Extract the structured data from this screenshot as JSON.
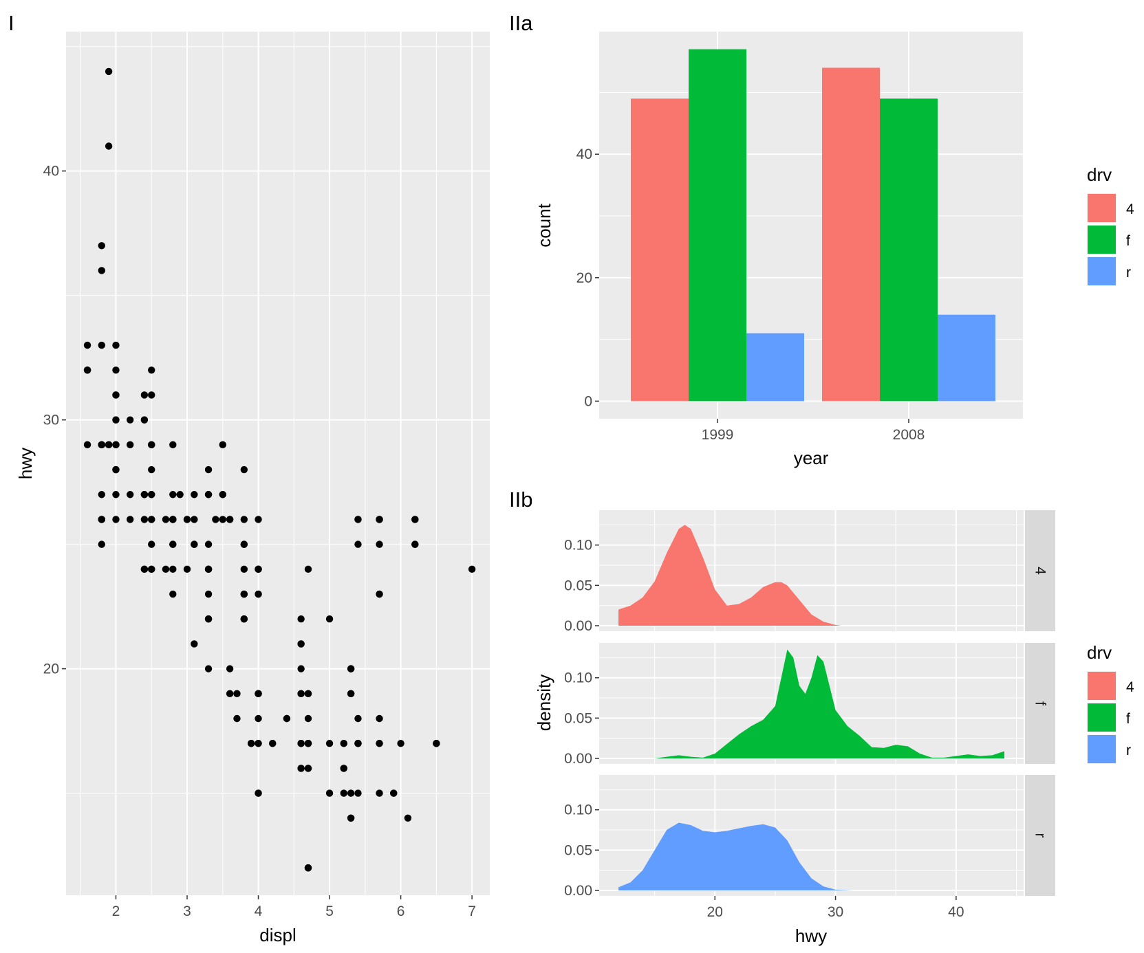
{
  "panels": {
    "a": {
      "tag": "I"
    },
    "b": {
      "tag": "IIa"
    },
    "c": {
      "tag": "IIb"
    }
  },
  "chart_data": [
    {
      "type": "scatter",
      "panel_tag": "I",
      "xlabel": "displ",
      "ylabel": "hwy",
      "xlim": [
        1.3,
        7.25
      ],
      "ylim": [
        10.9,
        45.6
      ],
      "xticks": [
        2,
        3,
        4,
        5,
        6,
        7
      ],
      "yticks": [
        20,
        30,
        40
      ],
      "points": [
        [
          1.8,
          29
        ],
        [
          1.8,
          29
        ],
        [
          2,
          31
        ],
        [
          2,
          30
        ],
        [
          2.8,
          26
        ],
        [
          2.8,
          26
        ],
        [
          3.1,
          27
        ],
        [
          1.8,
          26
        ],
        [
          1.8,
          25
        ],
        [
          2,
          28
        ],
        [
          2,
          27
        ],
        [
          2.8,
          25
        ],
        [
          2.8,
          25
        ],
        [
          3.1,
          25
        ],
        [
          3.1,
          25
        ],
        [
          5.7,
          26
        ],
        [
          5.7,
          23
        ],
        [
          6.2,
          26
        ],
        [
          6.2,
          25
        ],
        [
          6.5,
          17
        ],
        [
          5.3,
          20
        ],
        [
          5.3,
          15
        ],
        [
          5.3,
          20
        ],
        [
          5.7,
          17
        ],
        [
          6,
          17
        ],
        [
          5.7,
          26
        ],
        [
          5.7,
          23
        ],
        [
          6.2,
          26
        ],
        [
          6.2,
          25
        ],
        [
          7,
          24
        ],
        [
          5.3,
          19
        ],
        [
          5.3,
          14
        ],
        [
          5.7,
          15
        ],
        [
          6.5,
          17
        ],
        [
          2.4,
          27
        ],
        [
          2.4,
          30
        ],
        [
          3.1,
          26
        ],
        [
          3.5,
          29
        ],
        [
          3.6,
          26
        ],
        [
          2.4,
          24
        ],
        [
          3,
          24
        ],
        [
          3.3,
          22
        ],
        [
          3.3,
          22
        ],
        [
          3.3,
          24
        ],
        [
          3.3,
          24
        ],
        [
          3.3,
          24
        ],
        [
          3.8,
          22
        ],
        [
          3.8,
          22
        ],
        [
          3.8,
          24
        ],
        [
          4,
          24
        ],
        [
          3.7,
          19
        ],
        [
          3.7,
          18
        ],
        [
          3.9,
          17
        ],
        [
          3.9,
          17
        ],
        [
          4.7,
          19
        ],
        [
          4.7,
          19
        ],
        [
          4.7,
          12
        ],
        [
          5.2,
          17
        ],
        [
          5.2,
          17
        ],
        [
          3.9,
          17
        ],
        [
          4.7,
          17
        ],
        [
          4.7,
          12
        ],
        [
          4.7,
          17
        ],
        [
          5.2,
          16
        ],
        [
          5.7,
          18
        ],
        [
          5.9,
          15
        ],
        [
          4.7,
          16
        ],
        [
          4.7,
          12
        ],
        [
          4.7,
          17
        ],
        [
          4.7,
          17
        ],
        [
          4.7,
          16
        ],
        [
          4.7,
          12
        ],
        [
          5.2,
          15
        ],
        [
          5.2,
          16
        ],
        [
          5.7,
          17
        ],
        [
          5.9,
          15
        ],
        [
          4.6,
          17
        ],
        [
          5.4,
          17
        ],
        [
          5.4,
          18
        ],
        [
          4,
          17
        ],
        [
          4,
          19
        ],
        [
          4,
          17
        ],
        [
          4,
          19
        ],
        [
          4.6,
          19
        ],
        [
          5,
          17
        ],
        [
          4.2,
          17
        ],
        [
          4.2,
          17
        ],
        [
          4.6,
          16
        ],
        [
          4.6,
          17
        ],
        [
          4.6,
          17
        ],
        [
          5.4,
          15
        ],
        [
          5.4,
          17
        ],
        [
          5.4,
          26
        ],
        [
          5.4,
          25
        ],
        [
          4,
          26
        ],
        [
          4,
          24
        ],
        [
          4.6,
          21
        ],
        [
          5,
          22
        ],
        [
          3.8,
          23
        ],
        [
          3.8,
          23
        ],
        [
          4,
          23
        ],
        [
          4,
          19
        ],
        [
          4.6,
          21
        ],
        [
          4.6,
          19
        ],
        [
          4.6,
          20
        ],
        [
          4.6,
          22
        ],
        [
          5.4,
          17
        ],
        [
          5.4,
          17
        ],
        [
          1.8,
          29
        ],
        [
          1.8,
          29
        ],
        [
          2,
          28
        ],
        [
          2,
          29
        ],
        [
          2.8,
          26
        ],
        [
          2.8,
          26
        ],
        [
          3.6,
          26
        ],
        [
          2.4,
          26
        ],
        [
          2.4,
          27
        ],
        [
          3,
          26
        ],
        [
          3.3,
          25
        ],
        [
          3.3,
          23
        ],
        [
          3.5,
          27
        ],
        [
          3.8,
          25
        ],
        [
          4.4,
          18
        ],
        [
          4.4,
          18
        ],
        [
          2.5,
          24
        ],
        [
          2.5,
          25
        ],
        [
          2.8,
          24
        ],
        [
          4,
          18
        ],
        [
          4,
          15
        ],
        [
          4.6,
          16
        ],
        [
          5,
          15
        ],
        [
          6.1,
          14
        ],
        [
          5.3,
          19
        ],
        [
          5.3,
          20
        ],
        [
          4.7,
          17
        ],
        [
          5.3,
          14
        ],
        [
          4,
          15
        ],
        [
          4.7,
          18
        ],
        [
          2,
          30
        ],
        [
          2.5,
          29
        ],
        [
          1.6,
          32
        ],
        [
          1.6,
          32
        ],
        [
          1.6,
          29
        ],
        [
          1.6,
          32
        ],
        [
          1.6,
          33
        ],
        [
          1.8,
          33
        ],
        [
          1.8,
          36
        ],
        [
          1.8,
          37
        ],
        [
          1.9,
          44
        ],
        [
          1.9,
          41
        ],
        [
          2,
          31
        ],
        [
          2,
          29
        ],
        [
          2.5,
          28
        ],
        [
          2.8,
          26
        ],
        [
          3,
          26
        ],
        [
          1.8,
          27
        ],
        [
          1.8,
          29
        ],
        [
          2.5,
          31
        ],
        [
          2.7,
          26
        ],
        [
          3.4,
          26
        ],
        [
          4,
          24
        ],
        [
          4.7,
          24
        ],
        [
          2.2,
          26
        ],
        [
          2.2,
          27
        ],
        [
          2.4,
          31
        ],
        [
          2.4,
          30
        ],
        [
          3.3,
          22
        ],
        [
          3.3,
          20
        ],
        [
          2.4,
          24
        ],
        [
          2.5,
          26
        ],
        [
          2.5,
          27
        ],
        [
          2.8,
          23
        ],
        [
          3.8,
          23
        ],
        [
          3.8,
          22
        ],
        [
          3.8,
          26
        ],
        [
          4,
          23
        ],
        [
          5.4,
          26
        ],
        [
          5.7,
          25
        ],
        [
          5.7,
          26
        ],
        [
          6.5,
          17
        ],
        [
          3.3,
          28
        ],
        [
          3.8,
          28
        ],
        [
          3.8,
          25
        ],
        [
          3.3,
          27
        ],
        [
          3.5,
          26
        ],
        [
          2.5,
          26
        ],
        [
          2.7,
          24
        ],
        [
          3.1,
          21
        ],
        [
          3.6,
          20
        ],
        [
          3.6,
          19
        ],
        [
          2,
          33
        ],
        [
          2,
          32
        ],
        [
          2.5,
          29
        ],
        [
          2.5,
          27
        ],
        [
          3.3,
          27
        ],
        [
          3.5,
          27
        ],
        [
          1.9,
          29
        ],
        [
          1.9,
          29
        ],
        [
          2.5,
          32
        ],
        [
          2.9,
          27
        ],
        [
          2.2,
          30
        ],
        [
          2.2,
          29
        ],
        [
          2.5,
          24
        ],
        [
          1.8,
          26
        ],
        [
          1.8,
          26
        ],
        [
          2,
          28
        ],
        [
          2,
          26
        ],
        [
          2.8,
          29
        ],
        [
          2.8,
          27
        ]
      ]
    },
    {
      "type": "bar",
      "panel_tag": "IIa",
      "xlabel": "year",
      "ylabel": "count",
      "categories": [
        "1999",
        "2008"
      ],
      "series": [
        {
          "name": "4",
          "values": [
            49,
            54
          ]
        },
        {
          "name": "f",
          "values": [
            57,
            49
          ]
        },
        {
          "name": "r",
          "values": [
            11,
            14
          ]
        }
      ],
      "ylim": [
        -2.85,
        59.85
      ],
      "yticks": [
        0,
        20,
        40
      ],
      "legend": {
        "title": "drv",
        "position": "right"
      }
    },
    {
      "type": "area",
      "panel_tag": "IIb",
      "xlabel": "hwy",
      "ylabel": "density",
      "xlim": [
        10.4,
        45.6
      ],
      "xticks": [
        20,
        30,
        40
      ],
      "ylim": [
        -0.0068,
        0.1432
      ],
      "yticks": [
        "0.00",
        "0.05",
        "0.10"
      ],
      "facets": [
        {
          "strip": "4",
          "range": [
            12,
            30.5
          ],
          "x": [
            12,
            13,
            14,
            15,
            16,
            17,
            17.5,
            18,
            19,
            20,
            21,
            22,
            23,
            24,
            25,
            25.5,
            26,
            27,
            28,
            29,
            30,
            30.5
          ],
          "y": [
            0.02,
            0.025,
            0.035,
            0.055,
            0.09,
            0.12,
            0.125,
            0.12,
            0.085,
            0.045,
            0.025,
            0.027,
            0.035,
            0.048,
            0.054,
            0.054,
            0.05,
            0.032,
            0.014,
            0.005,
            0.001,
            0
          ]
        },
        {
          "strip": "f",
          "range": [
            15,
            44
          ],
          "x": [
            15,
            16,
            17,
            18,
            19,
            20,
            21,
            22,
            23,
            24,
            25,
            25.5,
            26,
            26.5,
            27,
            27.5,
            28,
            28.5,
            29,
            30,
            31,
            32,
            33,
            34,
            35,
            36,
            37,
            38,
            39,
            40,
            41,
            42,
            43,
            44
          ],
          "y": [
            0,
            0.002,
            0.004,
            0.002,
            0.001,
            0.006,
            0.018,
            0.03,
            0.04,
            0.048,
            0.065,
            0.1,
            0.135,
            0.125,
            0.09,
            0.08,
            0.1,
            0.128,
            0.12,
            0.06,
            0.04,
            0.028,
            0.014,
            0.013,
            0.017,
            0.015,
            0.006,
            0.001,
            0.001,
            0.003,
            0.005,
            0.003,
            0.004,
            0.009
          ]
        },
        {
          "strip": "r",
          "range": [
            12,
            31.5
          ],
          "x": [
            12,
            13,
            14,
            15,
            16,
            17,
            18,
            19,
            20,
            21,
            22,
            23,
            24,
            25,
            26,
            27,
            28,
            29,
            30,
            31,
            31.5
          ],
          "y": [
            0.004,
            0.01,
            0.025,
            0.05,
            0.075,
            0.084,
            0.081,
            0.074,
            0.072,
            0.074,
            0.077,
            0.08,
            0.082,
            0.078,
            0.062,
            0.035,
            0.015,
            0.005,
            0.001,
            0.0003,
            0
          ]
        }
      ],
      "legend": {
        "title": "drv",
        "position": "right"
      }
    }
  ],
  "legend": {
    "title": "drv",
    "items": [
      {
        "label": "4",
        "color": "#F8766D"
      },
      {
        "label": "f",
        "color": "#00BA38"
      },
      {
        "label": "r",
        "color": "#619CFF"
      }
    ]
  },
  "theme": {
    "panel_bg": "#EBEBEB",
    "strip_bg": "#D9D9D9",
    "grid": "#FFFFFF"
  }
}
